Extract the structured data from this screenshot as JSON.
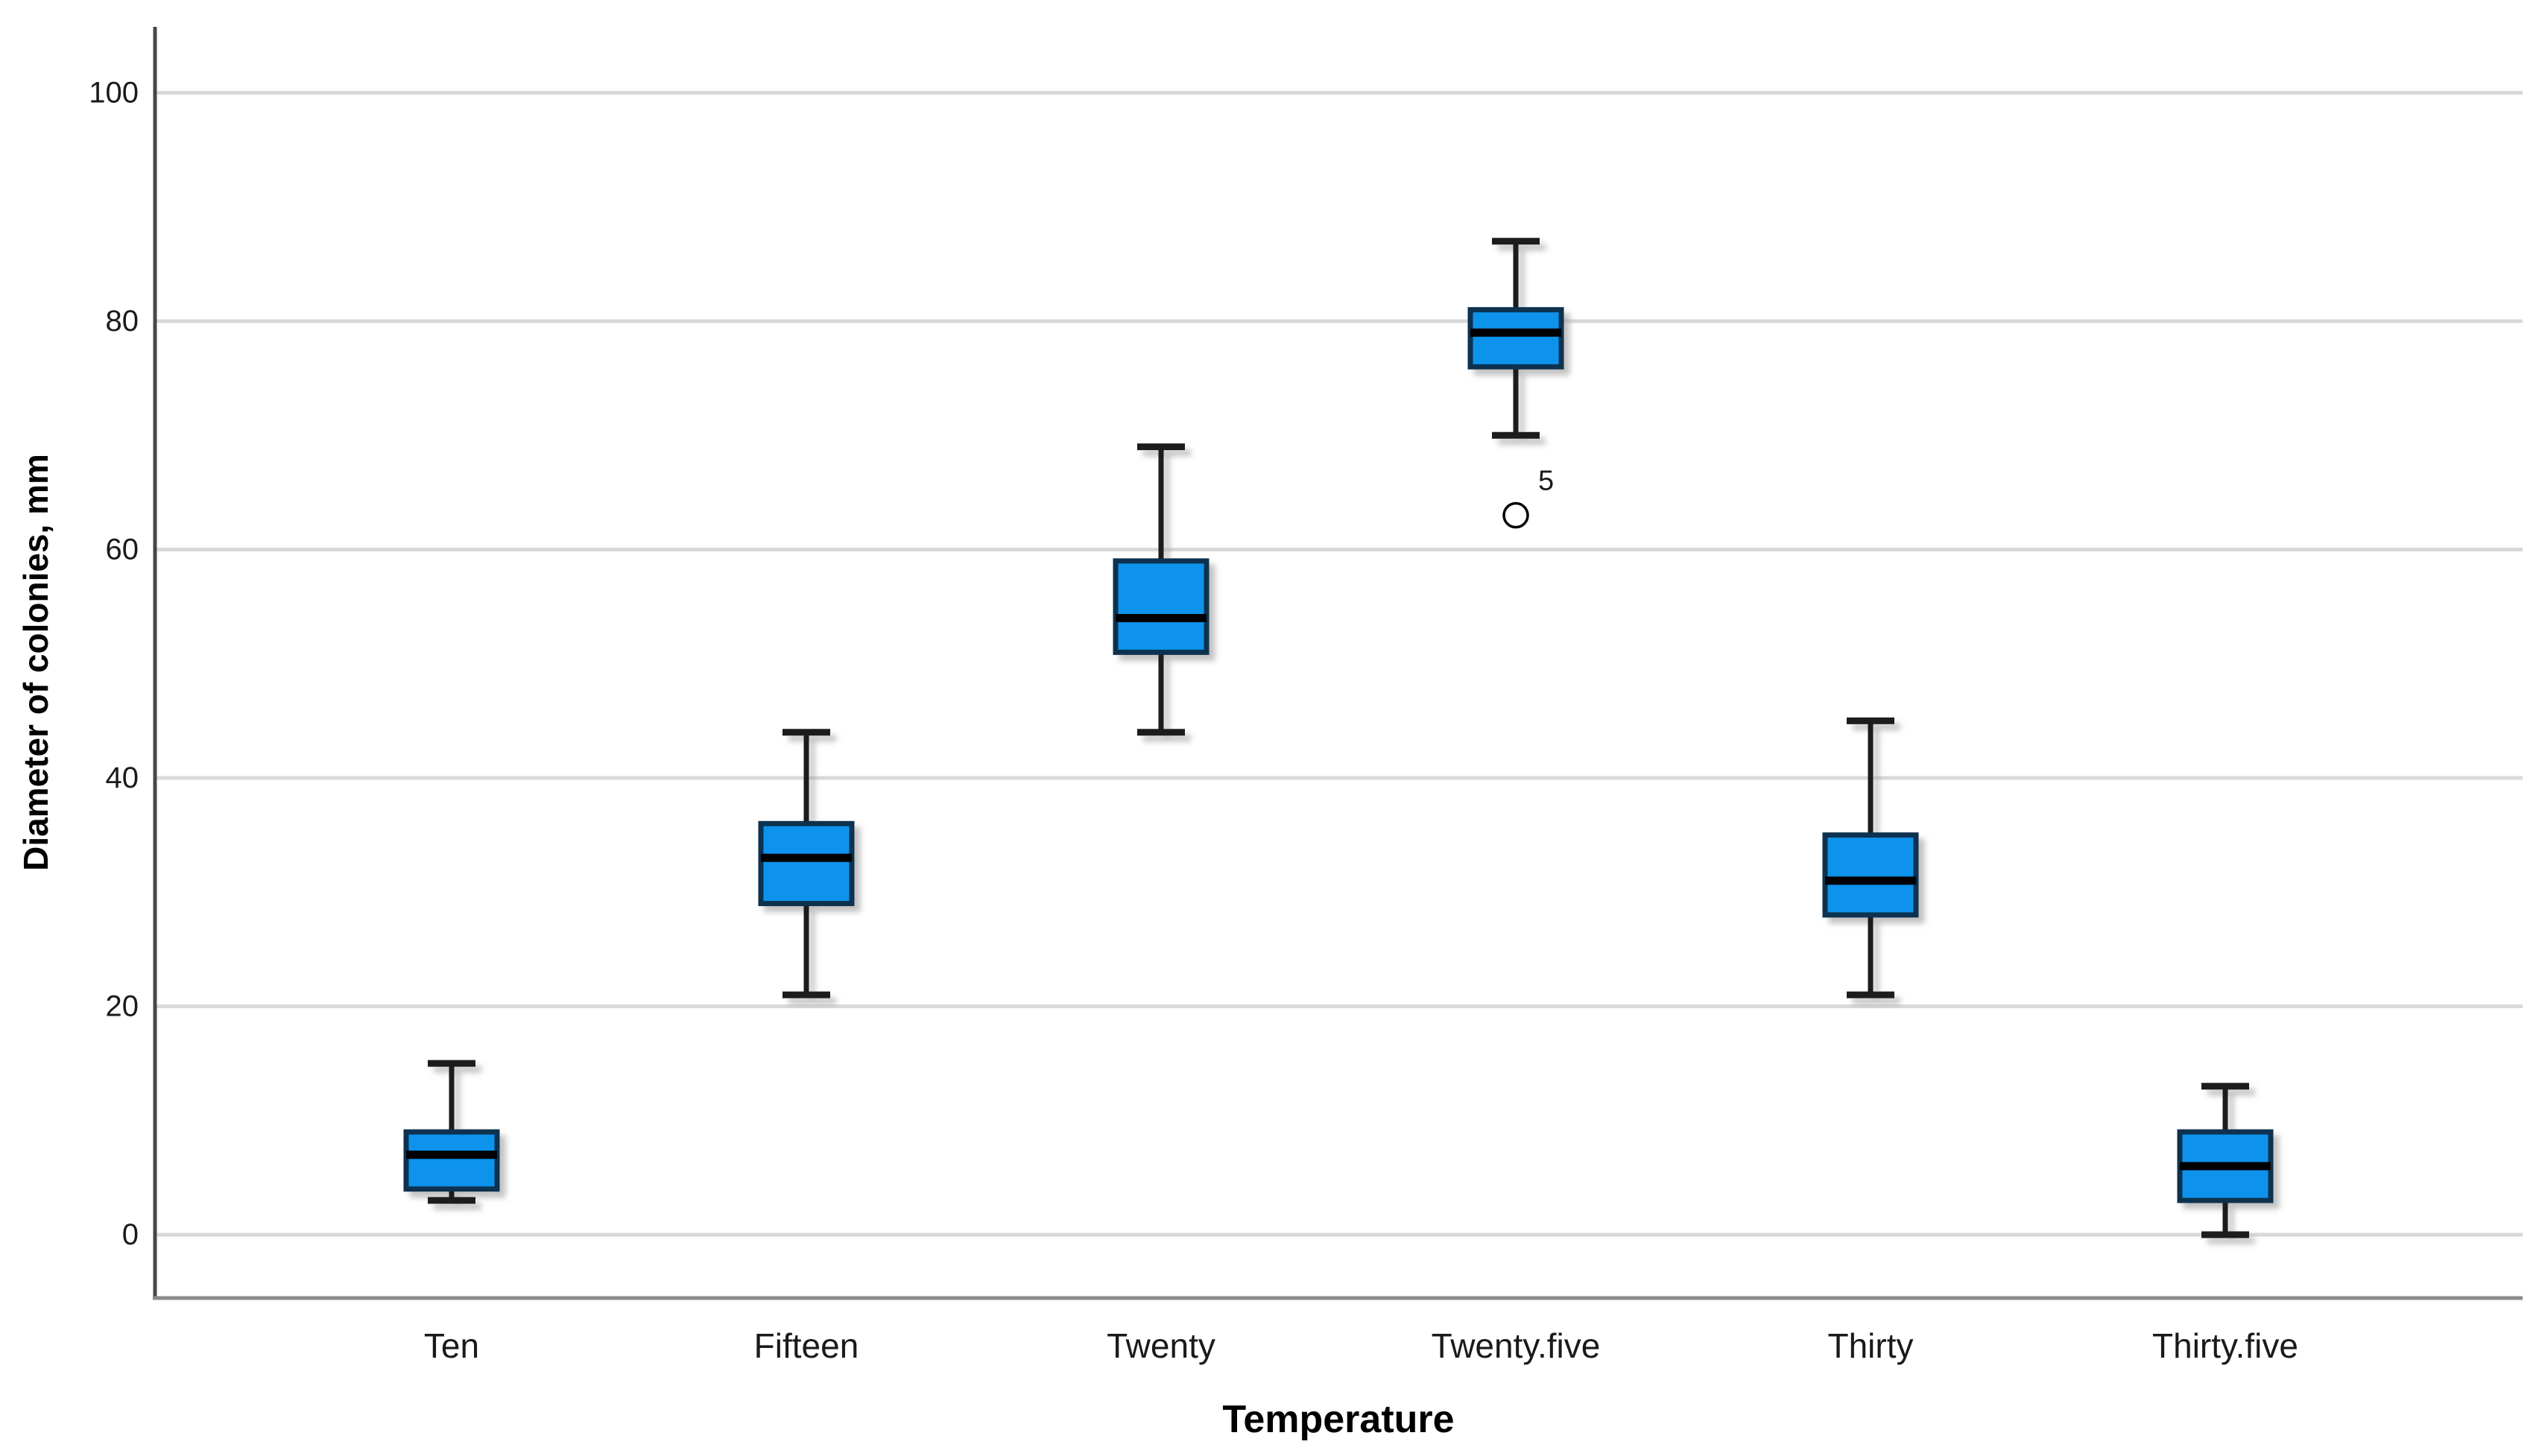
{
  "chart_data": {
    "type": "boxplot",
    "title": "",
    "xlabel": "Temperature",
    "ylabel": "Diameter of colonies, mm",
    "ylim": [
      0,
      100
    ],
    "yticks": [
      0,
      20,
      40,
      60,
      80,
      100
    ],
    "grid": "horizontal",
    "legend": "none",
    "categories": [
      "Ten",
      "Fifteen",
      "Twenty",
      "Twenty.five",
      "Thirty",
      "Thirty.five"
    ],
    "boxes": [
      {
        "category": "Ten",
        "whisker_low": 3,
        "q1": 4,
        "median": 7,
        "q3": 9,
        "whisker_high": 15,
        "outliers": []
      },
      {
        "category": "Fifteen",
        "whisker_low": 21,
        "q1": 29,
        "median": 33,
        "q3": 36,
        "whisker_high": 44,
        "outliers": []
      },
      {
        "category": "Twenty",
        "whisker_low": 44,
        "q1": 51,
        "median": 54,
        "q3": 59,
        "whisker_high": 69,
        "outliers": []
      },
      {
        "category": "Twenty.five",
        "whisker_low": 70,
        "q1": 76,
        "median": 79,
        "q3": 81,
        "whisker_high": 87,
        "outliers": [
          {
            "value": 63,
            "label": "5"
          }
        ]
      },
      {
        "category": "Thirty",
        "whisker_low": 21,
        "q1": 28,
        "median": 31,
        "q3": 35,
        "whisker_high": 45,
        "outliers": []
      },
      {
        "category": "Thirty.five",
        "whisker_low": 0,
        "q1": 3,
        "median": 6,
        "q3": 9,
        "whisker_high": 13,
        "outliers": []
      }
    ],
    "colors": {
      "box_fill": "#0d93ec",
      "box_border": "#0c3350",
      "median": "#000000",
      "whisker": "#1a1a1a",
      "gridline": "#d9d9d9",
      "axis_line_left": "#474747",
      "axis_line_bottom": "#8a8a8a",
      "shadow": "#9a9a9a",
      "outlier_stroke": "#000000",
      "background": "#ffffff"
    }
  }
}
